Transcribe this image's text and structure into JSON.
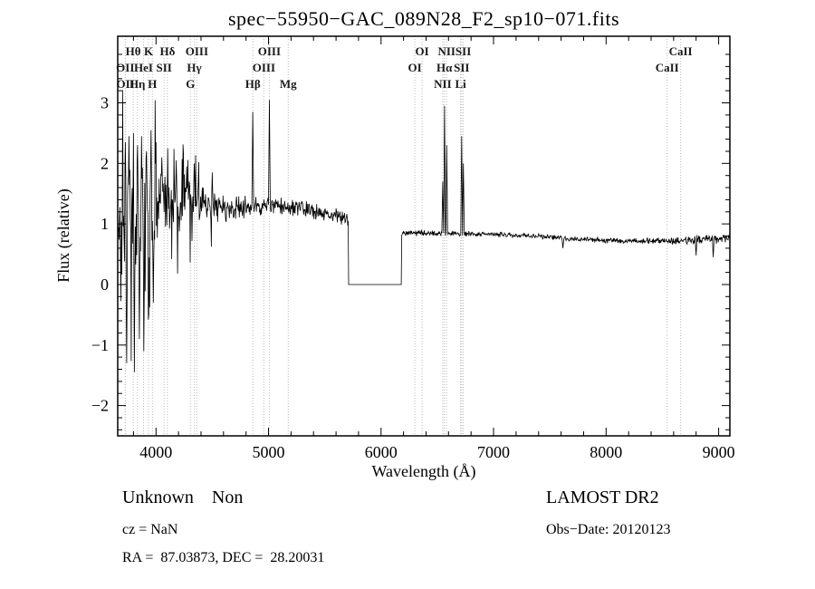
{
  "title": "spec−55950−GAC_089N28_F2_sp10−071.fits",
  "footer": {
    "class_label": "Unknown    Non",
    "survey": "LAMOST DR2",
    "cz": "cz = NaN",
    "obs_date": "Obs−Date: 20120123",
    "coords": "RA =  87.03873, DEC =  28.20031"
  },
  "colors": {
    "spectrum": "#000000",
    "line_marker": "#bbbbbb",
    "frame": "#000000",
    "label_text": "#1a1a1a"
  },
  "chart_data": {
    "type": "line",
    "title": "spec−55950−GAC_089N28_F2_sp10−071.fits",
    "xlabel": "Wavelength (Å)",
    "ylabel": "Flux (relative)",
    "xlim": [
      3660,
      9100
    ],
    "ylim": [
      -2.5,
      4.1
    ],
    "x_major_ticks": [
      4000,
      5000,
      6000,
      7000,
      8000,
      9000
    ],
    "y_major_ticks": [
      -2,
      -1,
      0,
      1,
      2,
      3
    ],
    "x_minor_step": 200,
    "y_minor_step": 0.2,
    "grid": false,
    "legend": "none",
    "noise_seed": 42,
    "sample_step": 4,
    "masked_region": {
      "from": 5710,
      "to": 6180,
      "value": 0
    },
    "continuum_anchors": [
      [
        3660,
        1.05
      ],
      [
        3800,
        1.15
      ],
      [
        4000,
        1.25
      ],
      [
        4300,
        1.3
      ],
      [
        4700,
        1.25
      ],
      [
        5000,
        1.3
      ],
      [
        5300,
        1.25
      ],
      [
        5500,
        1.18
      ],
      [
        5710,
        1.08
      ],
      [
        6180,
        0.86
      ],
      [
        6300,
        0.85
      ],
      [
        6600,
        0.84
      ],
      [
        7000,
        0.83
      ],
      [
        7400,
        0.8
      ],
      [
        7800,
        0.74
      ],
      [
        8200,
        0.72
      ],
      [
        8600,
        0.72
      ],
      [
        9000,
        0.76
      ],
      [
        9100,
        0.78
      ]
    ],
    "noise_envelope_anchors": [
      [
        3660,
        1.15
      ],
      [
        3800,
        1.1
      ],
      [
        3950,
        0.95
      ],
      [
        4100,
        0.65
      ],
      [
        4300,
        0.42
      ],
      [
        4600,
        0.27
      ],
      [
        5000,
        0.17
      ],
      [
        5400,
        0.15
      ],
      [
        5710,
        0.14
      ],
      [
        6180,
        0.055
      ],
      [
        6500,
        0.05
      ],
      [
        7000,
        0.048
      ],
      [
        7600,
        0.05
      ],
      [
        8200,
        0.055
      ],
      [
        8700,
        0.075
      ],
      [
        9100,
        0.1
      ]
    ],
    "emission_spikes": [
      {
        "x": 3727,
        "y": 2.35
      },
      {
        "x": 3740,
        "y": -1.3
      },
      {
        "x": 3760,
        "y": 2.45
      },
      {
        "x": 3798,
        "y": 2.5
      },
      {
        "x": 3806,
        "y": -1.45
      },
      {
        "x": 3835,
        "y": 2.3
      },
      {
        "x": 3850,
        "y": -0.9
      },
      {
        "x": 3870,
        "y": 2.45
      },
      {
        "x": 3890,
        "y": -1.1
      },
      {
        "x": 3915,
        "y": 2.2
      },
      {
        "x": 3934,
        "y": -0.5
      },
      {
        "x": 3955,
        "y": 2.55
      },
      {
        "x": 3975,
        "y": -0.3
      },
      {
        "x": 4000,
        "y": 2.35
      },
      {
        "x": 4050,
        "y": 2.1
      },
      {
        "x": 4102,
        "y": 2.25
      },
      {
        "x": 4180,
        "y": 2.05
      },
      {
        "x": 4270,
        "y": 1.95
      },
      {
        "x": 4340,
        "y": 2.0
      },
      {
        "x": 4500,
        "y": 1.85
      },
      {
        "x": 4861,
        "y": 2.85
      },
      {
        "x": 5007,
        "y": 3.05
      },
      {
        "x": 6548,
        "y": 1.7
      },
      {
        "x": 6563,
        "y": 2.95
      },
      {
        "x": 6583,
        "y": 2.3
      },
      {
        "x": 6716,
        "y": 2.45
      },
      {
        "x": 6731,
        "y": 2.0
      },
      {
        "x": 7615,
        "y": 0.6
      },
      {
        "x": 8800,
        "y": 0.48
      },
      {
        "x": 8950,
        "y": 0.45
      }
    ],
    "spectral_lines": [
      {
        "label": "OII",
        "wavelength": 3727,
        "row": 2
      },
      {
        "label": "OII",
        "wavelength": 3729,
        "row": 3
      },
      {
        "label": "Hθ",
        "wavelength": 3798,
        "row": 1
      },
      {
        "label": "Hη",
        "wavelength": 3835,
        "row": 3
      },
      {
        "label": "HeI",
        "wavelength": 3889,
        "row": 2
      },
      {
        "label": "K",
        "wavelength": 3934,
        "row": 1
      },
      {
        "label": "H",
        "wavelength": 3968,
        "row": 3
      },
      {
        "label": "SII",
        "wavelength": 4072,
        "row": 2
      },
      {
        "label": "Hδ",
        "wavelength": 4102,
        "row": 1
      },
      {
        "label": "G",
        "wavelength": 4306,
        "row": 3
      },
      {
        "label": "Hγ",
        "wavelength": 4340,
        "row": 2
      },
      {
        "label": "OIII",
        "wavelength": 4363,
        "row": 1
      },
      {
        "label": "Hβ",
        "wavelength": 4861,
        "row": 3
      },
      {
        "label": "OIII",
        "wavelength": 4959,
        "row": 2
      },
      {
        "label": "OIII",
        "wavelength": 5007,
        "row": 1
      },
      {
        "label": "Mg",
        "wavelength": 5175,
        "row": 3
      },
      {
        "label": "OI",
        "wavelength": 6300,
        "row": 2
      },
      {
        "label": "OI",
        "wavelength": 6365,
        "row": 1
      },
      {
        "label": "NII",
        "wavelength": 6548,
        "row": 3
      },
      {
        "label": "Hα",
        "wavelength": 6563,
        "row": 2
      },
      {
        "label": "NII",
        "wavelength": 6583,
        "row": 1
      },
      {
        "label": "Li",
        "wavelength": 6707,
        "row": 3
      },
      {
        "label": "SII",
        "wavelength": 6716,
        "row": 2
      },
      {
        "label": "SII",
        "wavelength": 6731,
        "row": 1
      },
      {
        "label": "CaII",
        "wavelength": 8542,
        "row": 2
      },
      {
        "label": "CaII",
        "wavelength": 8662,
        "row": 1
      }
    ]
  }
}
